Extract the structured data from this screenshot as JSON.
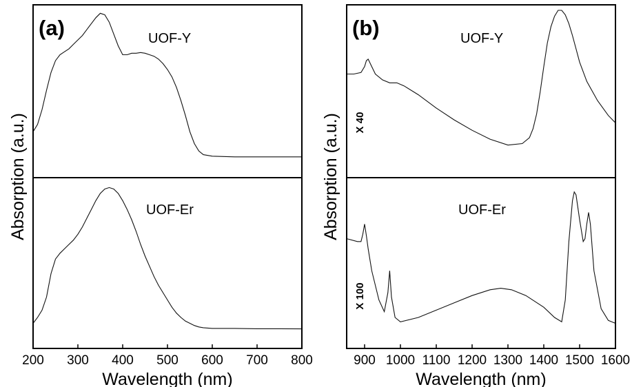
{
  "chart_data": [
    {
      "type": "line",
      "panel_label": "(a)",
      "xlabel": "Wavelength (nm)",
      "ylabel": "Absorption (a.u.)",
      "xlim": [
        200,
        800
      ],
      "xticks": [
        "200",
        "300",
        "400",
        "500",
        "600",
        "700",
        "800"
      ],
      "ylim": [
        0,
        1
      ],
      "grid": false,
      "subplots": [
        {
          "label": "UOF-Y",
          "x": [
            200,
            210,
            220,
            230,
            240,
            250,
            260,
            270,
            280,
            290,
            300,
            310,
            320,
            330,
            340,
            350,
            360,
            370,
            380,
            390,
            400,
            410,
            420,
            430,
            440,
            450,
            460,
            470,
            480,
            490,
            500,
            510,
            520,
            530,
            540,
            550,
            560,
            570,
            580,
            600,
            650,
            700,
            750,
            800
          ],
          "values": [
            0.18,
            0.23,
            0.33,
            0.46,
            0.58,
            0.66,
            0.7,
            0.72,
            0.74,
            0.77,
            0.8,
            0.83,
            0.87,
            0.91,
            0.95,
            0.98,
            0.97,
            0.92,
            0.84,
            0.76,
            0.7,
            0.7,
            0.71,
            0.71,
            0.715,
            0.71,
            0.7,
            0.69,
            0.67,
            0.64,
            0.6,
            0.55,
            0.48,
            0.39,
            0.29,
            0.18,
            0.1,
            0.05,
            0.025,
            0.015,
            0.01,
            0.01,
            0.01,
            0.01
          ]
        },
        {
          "label": "UOF-Er",
          "x": [
            200,
            210,
            220,
            230,
            240,
            250,
            260,
            270,
            280,
            290,
            300,
            310,
            320,
            330,
            340,
            350,
            360,
            370,
            380,
            390,
            400,
            410,
            420,
            430,
            440,
            450,
            460,
            470,
            480,
            490,
            500,
            510,
            520,
            530,
            540,
            550,
            560,
            570,
            580,
            600,
            650,
            700,
            750,
            800
          ],
          "values": [
            0.04,
            0.08,
            0.13,
            0.22,
            0.38,
            0.48,
            0.52,
            0.55,
            0.58,
            0.61,
            0.65,
            0.7,
            0.76,
            0.82,
            0.88,
            0.93,
            0.96,
            0.97,
            0.96,
            0.93,
            0.88,
            0.82,
            0.75,
            0.67,
            0.58,
            0.5,
            0.43,
            0.36,
            0.3,
            0.25,
            0.2,
            0.15,
            0.11,
            0.08,
            0.055,
            0.04,
            0.025,
            0.015,
            0.01,
            0.005,
            0.005,
            0.003,
            0.003,
            0.002
          ]
        }
      ]
    },
    {
      "type": "line",
      "panel_label": "(b)",
      "xlabel": "Wavelength (nm)",
      "ylabel": "Absorption (a.u.)",
      "xlim": [
        850,
        1600
      ],
      "xticks": [
        "900",
        "1000",
        "1100",
        "1200",
        "1300",
        "1400",
        "1500",
        "1600"
      ],
      "ylim": [
        0,
        1
      ],
      "grid": false,
      "subplots": [
        {
          "label": "UOF-Y",
          "scale_label": "X 40",
          "x": [
            850,
            870,
            890,
            900,
            905,
            910,
            920,
            930,
            950,
            970,
            990,
            1010,
            1050,
            1100,
            1150,
            1200,
            1250,
            1300,
            1340,
            1360,
            1370,
            1380,
            1390,
            1400,
            1410,
            1420,
            1430,
            1440,
            1450,
            1460,
            1470,
            1480,
            1490,
            1500,
            1520,
            1550,
            1580,
            1600
          ],
          "values": [
            0.57,
            0.57,
            0.58,
            0.62,
            0.66,
            0.67,
            0.62,
            0.57,
            0.53,
            0.51,
            0.51,
            0.49,
            0.43,
            0.34,
            0.26,
            0.19,
            0.13,
            0.09,
            0.1,
            0.14,
            0.2,
            0.3,
            0.45,
            0.62,
            0.78,
            0.89,
            0.96,
            1.0,
            1.0,
            0.97,
            0.91,
            0.83,
            0.74,
            0.65,
            0.52,
            0.39,
            0.29,
            0.24
          ]
        },
        {
          "label": "UOF-Er",
          "scale_label": "X 100",
          "x": [
            850,
            880,
            890,
            895,
            900,
            905,
            910,
            920,
            940,
            955,
            965,
            970,
            975,
            985,
            1000,
            1050,
            1100,
            1150,
            1200,
            1250,
            1280,
            1310,
            1350,
            1400,
            1430,
            1450,
            1460,
            1470,
            1480,
            1485,
            1490,
            1500,
            1510,
            1515,
            1520,
            1525,
            1530,
            1540,
            1560,
            1580,
            1600
          ],
          "values": [
            0.62,
            0.6,
            0.6,
            0.65,
            0.72,
            0.64,
            0.55,
            0.4,
            0.2,
            0.12,
            0.25,
            0.4,
            0.22,
            0.08,
            0.05,
            0.08,
            0.13,
            0.18,
            0.23,
            0.27,
            0.28,
            0.27,
            0.23,
            0.15,
            0.08,
            0.05,
            0.2,
            0.6,
            0.88,
            0.94,
            0.92,
            0.75,
            0.6,
            0.62,
            0.72,
            0.8,
            0.72,
            0.4,
            0.14,
            0.06,
            0.04
          ]
        }
      ]
    }
  ]
}
